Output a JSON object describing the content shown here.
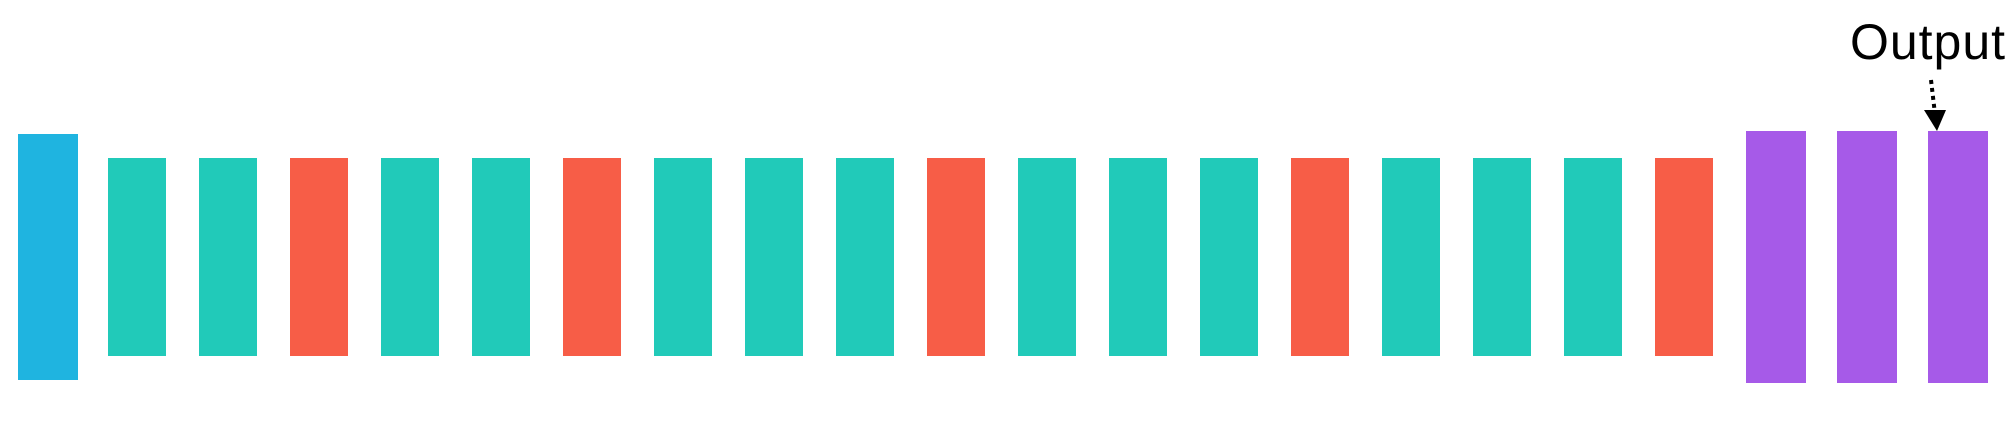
{
  "output_label": "Output",
  "colors": {
    "input": "#1fb4e0",
    "layer_teal": "#21cab9",
    "layer_red": "#f75d47",
    "output": "#a65ae8",
    "text": "#000000"
  },
  "middle_blocks": [
    "teal",
    "teal",
    "red",
    "teal",
    "teal",
    "red",
    "teal",
    "teal",
    "teal",
    "red",
    "teal",
    "teal",
    "teal",
    "red",
    "teal",
    "teal",
    "teal",
    "red"
  ],
  "output_blocks": [
    "purple",
    "purple",
    "purple"
  ]
}
